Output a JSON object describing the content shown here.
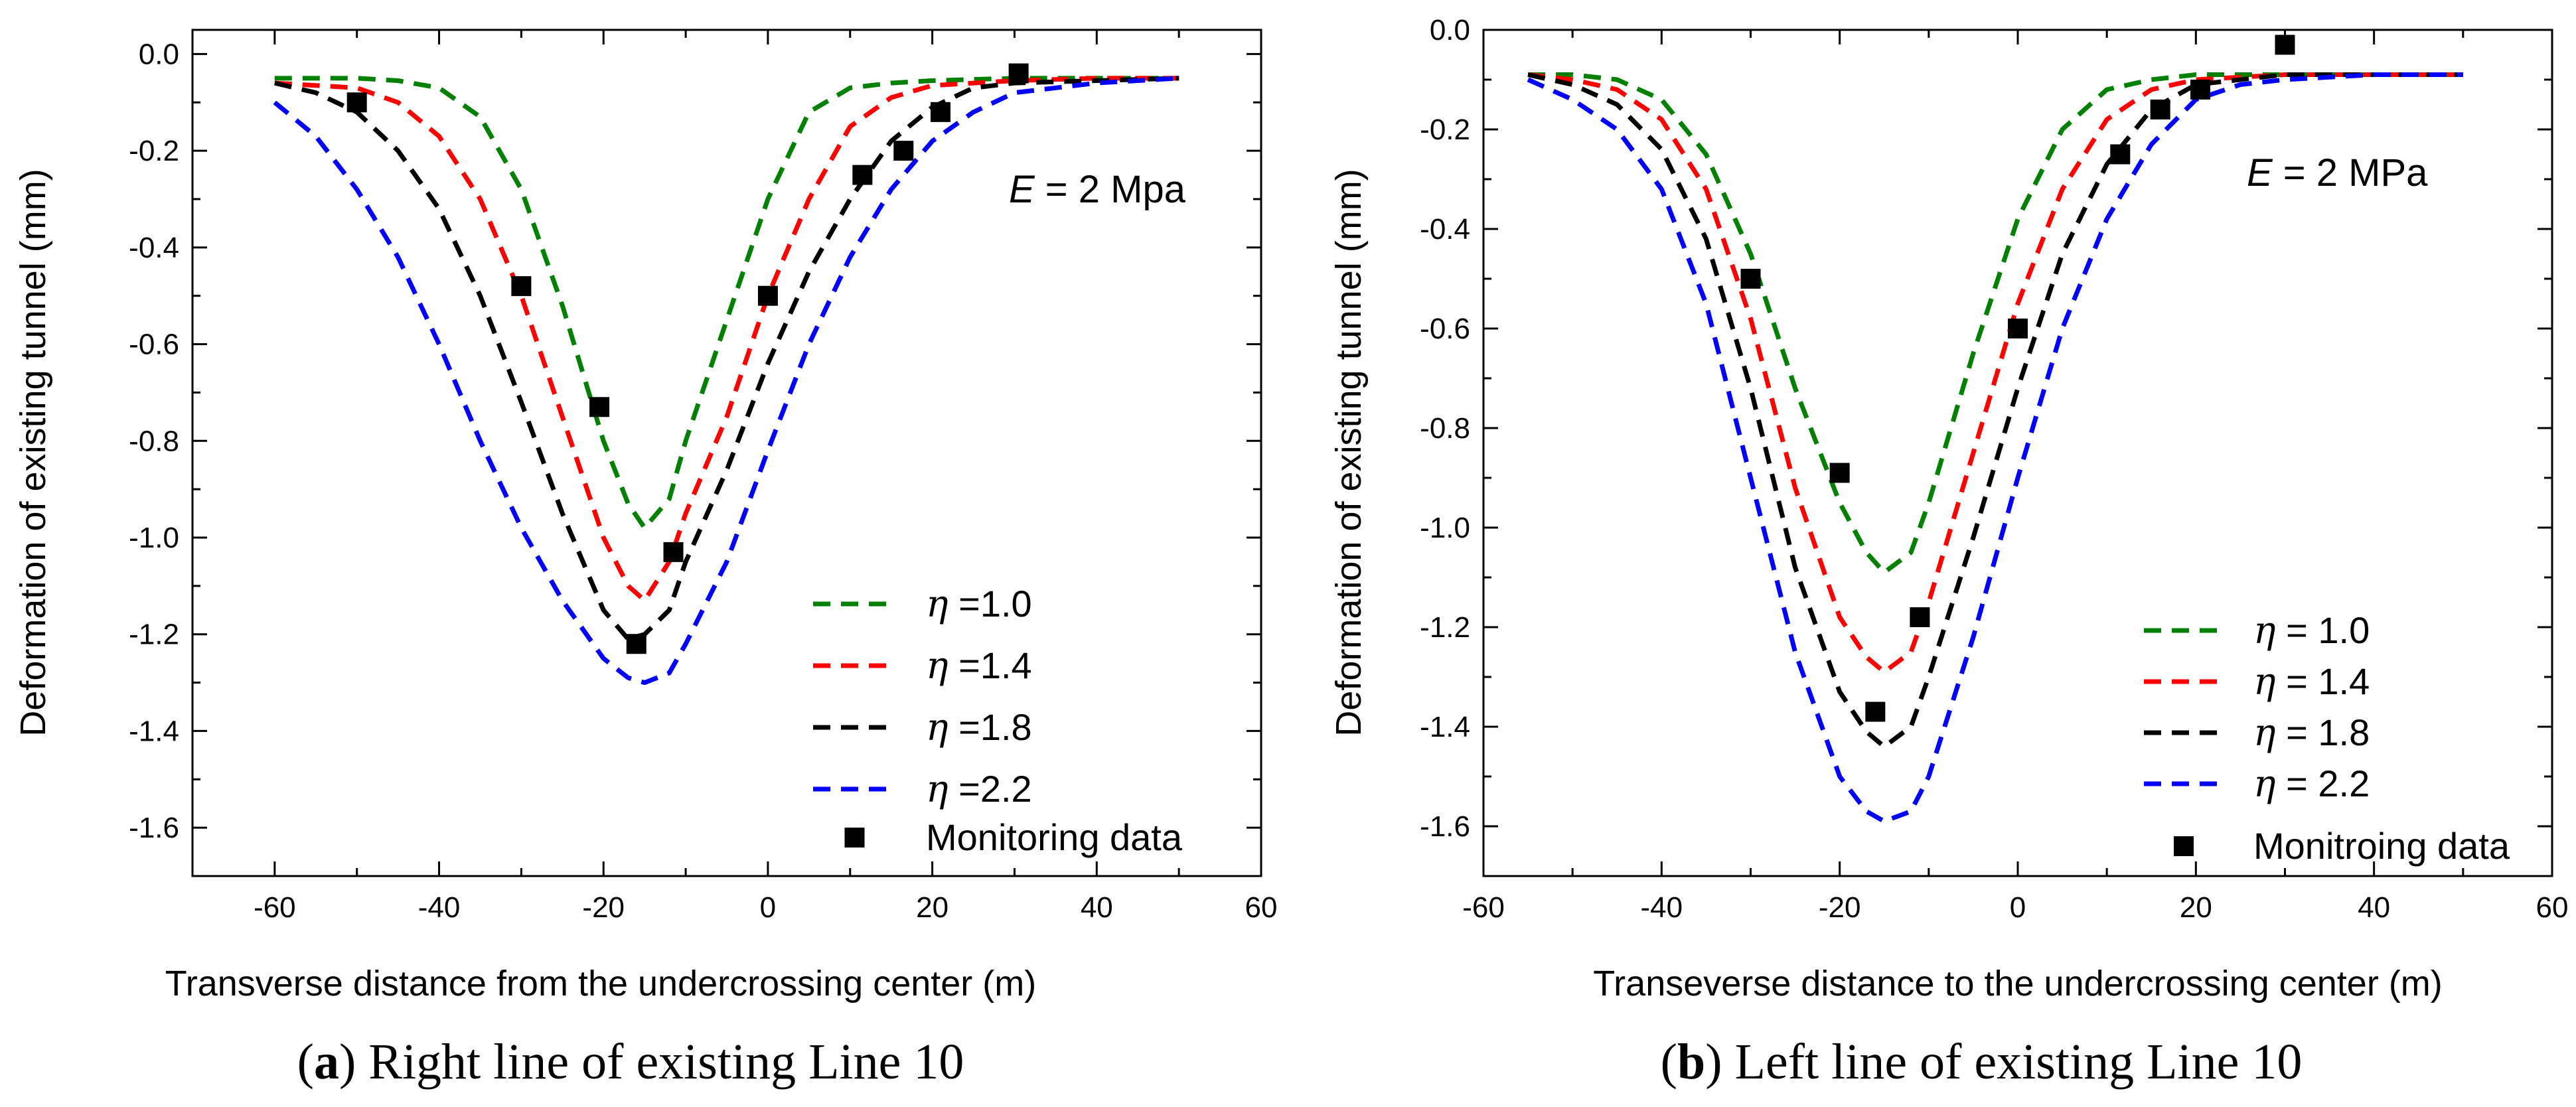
{
  "chart_data": [
    {
      "type": "line",
      "panel_label": "a",
      "caption": "Right line of existing Line 10",
      "xlabel": "Transverse distance from the undercrossing center (m)",
      "ylabel": "Deformation of existing tunnel (mm)",
      "xlim": [
        -70,
        60
      ],
      "ylim": [
        -1.7,
        0.05
      ],
      "xticks": [
        -60,
        -40,
        -20,
        0,
        20,
        40,
        60
      ],
      "yticks": [
        0.0,
        -0.2,
        -0.4,
        -0.6,
        -0.8,
        -1.0,
        -1.2,
        -1.4,
        -1.6
      ],
      "xtick_labels": [
        "-60",
        "-40",
        "-20",
        "0",
        "20",
        "40",
        "60"
      ],
      "ytick_labels": [
        "0.0",
        "-0.2",
        "-0.4",
        "-0.6",
        "-0.8",
        "-1.0",
        "-1.2",
        "-1.4",
        "-1.6"
      ],
      "annotation": {
        "italic": "E",
        "text": " = 2 Mpa"
      },
      "legend_position": "lower-right",
      "series": [
        {
          "name": "η =1.0",
          "symbol": "η",
          "label_text": " =1.0",
          "color": "#008000",
          "style": "dashed",
          "x": [
            -60,
            -50,
            -45,
            -40,
            -35,
            -30,
            -25,
            -20,
            -17,
            -15,
            -12,
            -10,
            -5,
            0,
            5,
            10,
            15,
            20,
            30,
            40,
            50
          ],
          "y": [
            -0.05,
            -0.05,
            -0.055,
            -0.07,
            -0.13,
            -0.28,
            -0.52,
            -0.8,
            -0.93,
            -0.98,
            -0.92,
            -0.8,
            -0.55,
            -0.3,
            -0.12,
            -0.07,
            -0.06,
            -0.055,
            -0.05,
            -0.05,
            -0.05
          ]
        },
        {
          "name": "η =1.4",
          "symbol": "η",
          "label_text": " =1.4",
          "color": "#ff0000",
          "style": "dashed",
          "x": [
            -60,
            -50,
            -45,
            -40,
            -35,
            -30,
            -25,
            -20,
            -17,
            -15,
            -12,
            -10,
            -5,
            0,
            5,
            10,
            15,
            20,
            30,
            40,
            50
          ],
          "y": [
            -0.06,
            -0.07,
            -0.1,
            -0.17,
            -0.3,
            -0.5,
            -0.75,
            -1.0,
            -1.1,
            -1.13,
            -1.05,
            -0.95,
            -0.75,
            -0.5,
            -0.3,
            -0.15,
            -0.09,
            -0.065,
            -0.055,
            -0.05,
            -0.05
          ]
        },
        {
          "name": "η =1.8",
          "symbol": "η",
          "label_text": " =1.8",
          "color": "#000000",
          "style": "dashed",
          "x": [
            -60,
            -55,
            -50,
            -45,
            -40,
            -35,
            -30,
            -25,
            -20,
            -17,
            -15,
            -12,
            -10,
            -5,
            0,
            5,
            10,
            15,
            20,
            25,
            30,
            40,
            50
          ],
          "y": [
            -0.06,
            -0.08,
            -0.12,
            -0.2,
            -0.32,
            -0.5,
            -0.72,
            -0.95,
            -1.15,
            -1.21,
            -1.2,
            -1.15,
            -1.05,
            -0.86,
            -0.64,
            -0.45,
            -0.3,
            -0.18,
            -0.11,
            -0.07,
            -0.06,
            -0.055,
            -0.05
          ]
        },
        {
          "name": "η =2.2",
          "symbol": "η",
          "label_text": " =2.2",
          "color": "#0000ff",
          "style": "dashed",
          "x": [
            -60,
            -55,
            -50,
            -45,
            -40,
            -35,
            -30,
            -25,
            -20,
            -17,
            -15,
            -12,
            -10,
            -5,
            0,
            5,
            10,
            15,
            20,
            25,
            30,
            40,
            50
          ],
          "y": [
            -0.1,
            -0.17,
            -0.28,
            -0.42,
            -0.6,
            -0.8,
            -0.98,
            -1.13,
            -1.25,
            -1.29,
            -1.3,
            -1.28,
            -1.22,
            -1.05,
            -0.82,
            -0.6,
            -0.42,
            -0.28,
            -0.18,
            -0.12,
            -0.08,
            -0.06,
            -0.05
          ]
        }
      ],
      "scatter": {
        "name": "Monitoring data",
        "label_text": "Monitoring data",
        "marker": "square",
        "color": "#000000",
        "x": [
          -50,
          -30,
          -20.5,
          -16,
          -11.5,
          0,
          11.5,
          16.5,
          21,
          30.5
        ],
        "y": [
          -0.1,
          -0.48,
          -0.73,
          -1.22,
          -1.03,
          -0.5,
          -0.25,
          -0.2,
          -0.12,
          -0.04
        ]
      }
    },
    {
      "type": "line",
      "panel_label": "b",
      "caption": "Left line of existing Line 10",
      "xlabel": "Transeverse distance to the undercrossing center (m)",
      "ylabel": "Deformation of existing tunnel (mm)",
      "xlim": [
        -60,
        60
      ],
      "ylim": [
        -1.7,
        0.0
      ],
      "xticks": [
        -60,
        -40,
        -20,
        0,
        20,
        40,
        60
      ],
      "yticks": [
        0.0,
        -0.2,
        -0.4,
        -0.6,
        -0.8,
        -1.0,
        -1.2,
        -1.4,
        -1.6
      ],
      "xtick_labels": [
        "-60",
        "-40",
        "-20",
        "0",
        "20",
        "40",
        "60"
      ],
      "ytick_labels": [
        "0.0",
        "-0.2",
        "-0.4",
        "-0.6",
        "-0.8",
        "-1.0",
        "-1.2",
        "-1.4",
        "-1.6"
      ],
      "annotation": {
        "italic": "E",
        "text": " = 2 MPa"
      },
      "legend_position": "lower-right",
      "series": [
        {
          "name": "η = 1.0",
          "symbol": "η",
          "label_text": " = 1.0",
          "color": "#008000",
          "style": "dashed",
          "x": [
            -55,
            -50,
            -45,
            -40,
            -35,
            -30,
            -25,
            -20,
            -17,
            -15,
            -12,
            -10,
            -5,
            0,
            5,
            10,
            15,
            20,
            30,
            40,
            50
          ],
          "y": [
            -0.09,
            -0.09,
            -0.1,
            -0.14,
            -0.25,
            -0.45,
            -0.72,
            -0.95,
            -1.05,
            -1.09,
            -1.05,
            -0.95,
            -0.65,
            -0.38,
            -0.2,
            -0.12,
            -0.1,
            -0.09,
            -0.09,
            -0.09,
            -0.09
          ]
        },
        {
          "name": "η = 1.4",
          "symbol": "η",
          "label_text": " = 1.4",
          "color": "#ff0000",
          "style": "dashed",
          "x": [
            -55,
            -50,
            -45,
            -40,
            -35,
            -30,
            -25,
            -20,
            -17,
            -15,
            -12,
            -10,
            -5,
            0,
            5,
            10,
            15,
            20,
            30,
            40,
            50
          ],
          "y": [
            -0.09,
            -0.1,
            -0.12,
            -0.18,
            -0.32,
            -0.58,
            -0.92,
            -1.18,
            -1.26,
            -1.29,
            -1.25,
            -1.15,
            -0.85,
            -0.55,
            -0.32,
            -0.18,
            -0.12,
            -0.1,
            -0.09,
            -0.09,
            -0.09
          ]
        },
        {
          "name": "η = 1.8",
          "symbol": "η",
          "label_text": " = 1.8",
          "color": "#000000",
          "style": "dashed",
          "x": [
            -55,
            -50,
            -45,
            -40,
            -35,
            -30,
            -25,
            -20,
            -17,
            -15,
            -12,
            -10,
            -5,
            0,
            5,
            10,
            15,
            20,
            25,
            30,
            40,
            50
          ],
          "y": [
            -0.09,
            -0.11,
            -0.15,
            -0.24,
            -0.42,
            -0.72,
            -1.08,
            -1.33,
            -1.41,
            -1.44,
            -1.4,
            -1.3,
            -1.02,
            -0.72,
            -0.45,
            -0.27,
            -0.16,
            -0.11,
            -0.1,
            -0.09,
            -0.09,
            -0.09
          ]
        },
        {
          "name": "η = 2.2",
          "symbol": "η",
          "label_text": " = 2.2",
          "color": "#0000ff",
          "style": "dashed",
          "x": [
            -55,
            -50,
            -45,
            -40,
            -35,
            -30,
            -25,
            -20,
            -17,
            -15,
            -12,
            -10,
            -5,
            0,
            5,
            10,
            15,
            20,
            25,
            30,
            40,
            50
          ],
          "y": [
            -0.1,
            -0.14,
            -0.2,
            -0.32,
            -0.55,
            -0.9,
            -1.25,
            -1.5,
            -1.57,
            -1.59,
            -1.57,
            -1.5,
            -1.22,
            -0.9,
            -0.6,
            -0.38,
            -0.23,
            -0.14,
            -0.11,
            -0.1,
            -0.09,
            -0.09
          ]
        }
      ],
      "scatter": {
        "name": "Monitroing data",
        "label_text": "Monitroing data",
        "marker": "square",
        "color": "#000000",
        "x": [
          -30,
          -20,
          -16,
          -11,
          0,
          11.5,
          16,
          20.5,
          30
        ],
        "y": [
          -0.5,
          -0.89,
          -1.37,
          -1.18,
          -0.6,
          -0.25,
          -0.16,
          -0.12,
          -0.03
        ]
      }
    }
  ]
}
